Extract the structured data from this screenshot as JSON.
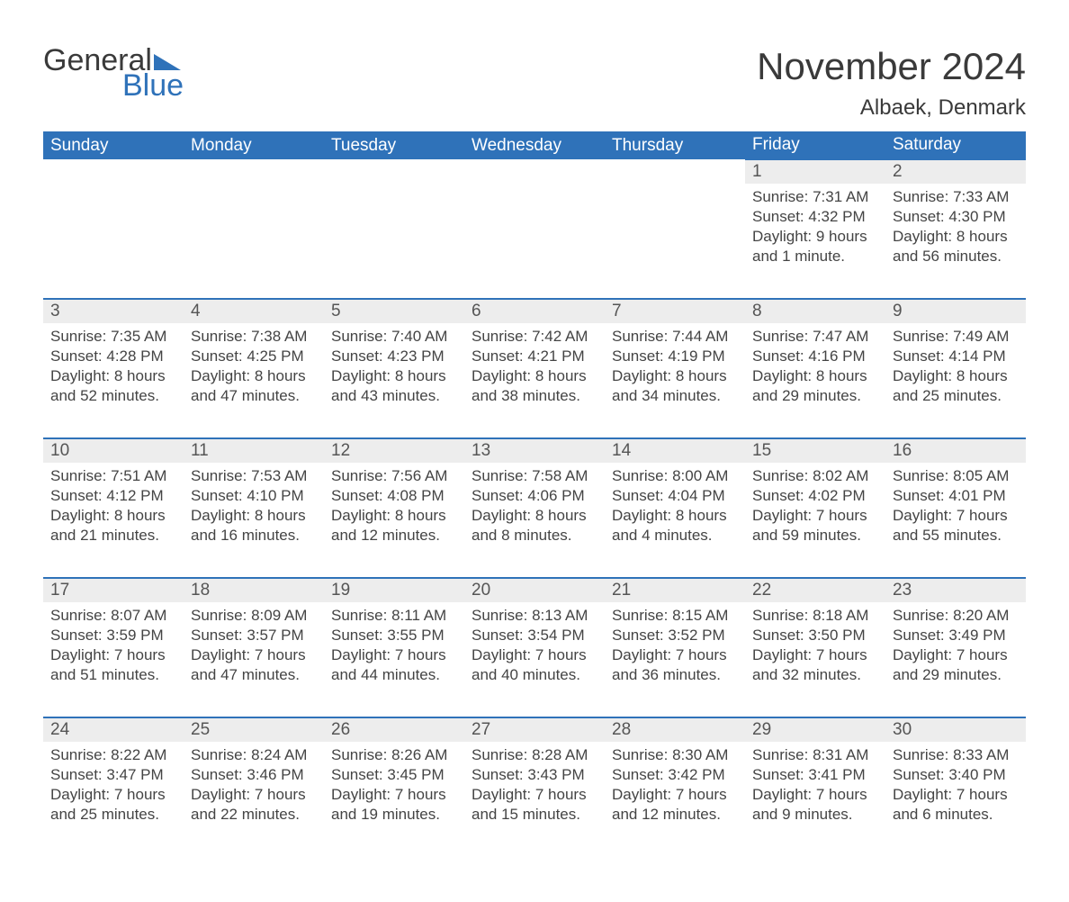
{
  "brand": {
    "word1": "General",
    "word2": "Blue"
  },
  "title": "November 2024",
  "location": "Albaek, Denmark",
  "colors": {
    "header_bg": "#2f72b9",
    "header_text": "#ffffff",
    "row_border": "#2f72b9",
    "daynum_bg": "#ededed",
    "body_text": "#444444",
    "title_text": "#3a3a3a"
  },
  "weekdays": [
    "Sunday",
    "Monday",
    "Tuesday",
    "Wednesday",
    "Thursday",
    "Friday",
    "Saturday"
  ],
  "weeks": [
    [
      null,
      null,
      null,
      null,
      null,
      {
        "n": "1",
        "sr": "7:31 AM",
        "ss": "4:32 PM",
        "dl": "9 hours and 1 minute."
      },
      {
        "n": "2",
        "sr": "7:33 AM",
        "ss": "4:30 PM",
        "dl": "8 hours and 56 minutes."
      }
    ],
    [
      {
        "n": "3",
        "sr": "7:35 AM",
        "ss": "4:28 PM",
        "dl": "8 hours and 52 minutes."
      },
      {
        "n": "4",
        "sr": "7:38 AM",
        "ss": "4:25 PM",
        "dl": "8 hours and 47 minutes."
      },
      {
        "n": "5",
        "sr": "7:40 AM",
        "ss": "4:23 PM",
        "dl": "8 hours and 43 minutes."
      },
      {
        "n": "6",
        "sr": "7:42 AM",
        "ss": "4:21 PM",
        "dl": "8 hours and 38 minutes."
      },
      {
        "n": "7",
        "sr": "7:44 AM",
        "ss": "4:19 PM",
        "dl": "8 hours and 34 minutes."
      },
      {
        "n": "8",
        "sr": "7:47 AM",
        "ss": "4:16 PM",
        "dl": "8 hours and 29 minutes."
      },
      {
        "n": "9",
        "sr": "7:49 AM",
        "ss": "4:14 PM",
        "dl": "8 hours and 25 minutes."
      }
    ],
    [
      {
        "n": "10",
        "sr": "7:51 AM",
        "ss": "4:12 PM",
        "dl": "8 hours and 21 minutes."
      },
      {
        "n": "11",
        "sr": "7:53 AM",
        "ss": "4:10 PM",
        "dl": "8 hours and 16 minutes."
      },
      {
        "n": "12",
        "sr": "7:56 AM",
        "ss": "4:08 PM",
        "dl": "8 hours and 12 minutes."
      },
      {
        "n": "13",
        "sr": "7:58 AM",
        "ss": "4:06 PM",
        "dl": "8 hours and 8 minutes."
      },
      {
        "n": "14",
        "sr": "8:00 AM",
        "ss": "4:04 PM",
        "dl": "8 hours and 4 minutes."
      },
      {
        "n": "15",
        "sr": "8:02 AM",
        "ss": "4:02 PM",
        "dl": "7 hours and 59 minutes."
      },
      {
        "n": "16",
        "sr": "8:05 AM",
        "ss": "4:01 PM",
        "dl": "7 hours and 55 minutes."
      }
    ],
    [
      {
        "n": "17",
        "sr": "8:07 AM",
        "ss": "3:59 PM",
        "dl": "7 hours and 51 minutes."
      },
      {
        "n": "18",
        "sr": "8:09 AM",
        "ss": "3:57 PM",
        "dl": "7 hours and 47 minutes."
      },
      {
        "n": "19",
        "sr": "8:11 AM",
        "ss": "3:55 PM",
        "dl": "7 hours and 44 minutes."
      },
      {
        "n": "20",
        "sr": "8:13 AM",
        "ss": "3:54 PM",
        "dl": "7 hours and 40 minutes."
      },
      {
        "n": "21",
        "sr": "8:15 AM",
        "ss": "3:52 PM",
        "dl": "7 hours and 36 minutes."
      },
      {
        "n": "22",
        "sr": "8:18 AM",
        "ss": "3:50 PM",
        "dl": "7 hours and 32 minutes."
      },
      {
        "n": "23",
        "sr": "8:20 AM",
        "ss": "3:49 PM",
        "dl": "7 hours and 29 minutes."
      }
    ],
    [
      {
        "n": "24",
        "sr": "8:22 AM",
        "ss": "3:47 PM",
        "dl": "7 hours and 25 minutes."
      },
      {
        "n": "25",
        "sr": "8:24 AM",
        "ss": "3:46 PM",
        "dl": "7 hours and 22 minutes."
      },
      {
        "n": "26",
        "sr": "8:26 AM",
        "ss": "3:45 PM",
        "dl": "7 hours and 19 minutes."
      },
      {
        "n": "27",
        "sr": "8:28 AM",
        "ss": "3:43 PM",
        "dl": "7 hours and 15 minutes."
      },
      {
        "n": "28",
        "sr": "8:30 AM",
        "ss": "3:42 PM",
        "dl": "7 hours and 12 minutes."
      },
      {
        "n": "29",
        "sr": "8:31 AM",
        "ss": "3:41 PM",
        "dl": "7 hours and 9 minutes."
      },
      {
        "n": "30",
        "sr": "8:33 AM",
        "ss": "3:40 PM",
        "dl": "7 hours and 6 minutes."
      }
    ]
  ],
  "labels": {
    "sunrise": "Sunrise: ",
    "sunset": "Sunset: ",
    "daylight": "Daylight: "
  }
}
